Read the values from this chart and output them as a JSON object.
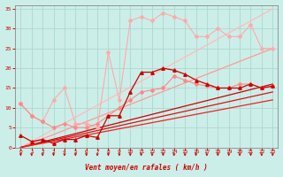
{
  "bg_color": "#cceee8",
  "grid_color": "#aad8d0",
  "xlabel": "Vent moyen/en rafales ( km/h )",
  "xlabel_color": "#cc0000",
  "tick_color": "#cc0000",
  "xlim": [
    -0.5,
    23.5
  ],
  "ylim": [
    0,
    36
  ],
  "xticks": [
    0,
    1,
    2,
    3,
    4,
    5,
    6,
    7,
    8,
    9,
    10,
    11,
    12,
    13,
    14,
    15,
    16,
    17,
    18,
    19,
    20,
    21,
    22,
    23
  ],
  "yticks": [
    0,
    5,
    10,
    15,
    20,
    25,
    30,
    35
  ],
  "series": [
    {
      "x": [
        0,
        1,
        2,
        3,
        4,
        5,
        6,
        7,
        8,
        9,
        10,
        11,
        12,
        13,
        14,
        15,
        16,
        17,
        18,
        19,
        20,
        21,
        22,
        23
      ],
      "y": [
        11,
        8,
        6.5,
        12,
        15,
        6,
        6,
        5,
        24,
        12,
        32,
        33,
        32,
        34,
        33,
        32,
        28,
        28,
        30,
        28,
        28,
        31,
        25,
        25
      ],
      "color": "#ffaaaa",
      "linewidth": 0.8,
      "marker": "D",
      "markersize": 2.0,
      "zorder": 3
    },
    {
      "x": [
        0,
        23
      ],
      "y": [
        0,
        35
      ],
      "color": "#ffbbbb",
      "linewidth": 0.9,
      "marker": null,
      "markersize": 0,
      "zorder": 2
    },
    {
      "x": [
        0,
        1,
        2,
        3,
        4,
        5,
        6,
        7,
        8,
        9,
        10,
        11,
        12,
        13,
        14,
        15,
        16,
        17,
        18,
        19,
        20,
        21,
        22,
        23
      ],
      "y": [
        11,
        8,
        6.5,
        5,
        6,
        5,
        5,
        6,
        8,
        10,
        12,
        14,
        14.5,
        15,
        18,
        17,
        16,
        15.5,
        15,
        15,
        16,
        16,
        15,
        15.5
      ],
      "color": "#ff8888",
      "linewidth": 0.8,
      "marker": "D",
      "markersize": 2.0,
      "zorder": 3
    },
    {
      "x": [
        0,
        23
      ],
      "y": [
        0,
        25
      ],
      "color": "#ff9999",
      "linewidth": 0.9,
      "marker": null,
      "markersize": 0,
      "zorder": 2
    },
    {
      "x": [
        0,
        1,
        2,
        3,
        4,
        5,
        6,
        7,
        8,
        9,
        10,
        11,
        12,
        13,
        14,
        15,
        16,
        17,
        18,
        19,
        20,
        21,
        22,
        23
      ],
      "y": [
        3,
        1.5,
        2,
        1,
        2,
        2,
        3,
        2.5,
        8,
        8,
        14,
        19,
        19,
        20,
        19.5,
        18.5,
        17,
        16,
        15,
        15,
        15,
        16,
        15,
        15.5
      ],
      "color": "#cc0000",
      "linewidth": 0.9,
      "marker": "^",
      "markersize": 2.5,
      "zorder": 4
    },
    {
      "x": [
        0,
        23
      ],
      "y": [
        0,
        16
      ],
      "color": "#cc0000",
      "linewidth": 0.9,
      "marker": null,
      "markersize": 0,
      "zorder": 2
    },
    {
      "x": [
        0,
        23
      ],
      "y": [
        0,
        14
      ],
      "color": "#dd1111",
      "linewidth": 0.9,
      "marker": null,
      "markersize": 0,
      "zorder": 2
    },
    {
      "x": [
        0,
        23
      ],
      "y": [
        0,
        12
      ],
      "color": "#ee2222",
      "linewidth": 0.9,
      "marker": null,
      "markersize": 0,
      "zorder": 2
    }
  ]
}
